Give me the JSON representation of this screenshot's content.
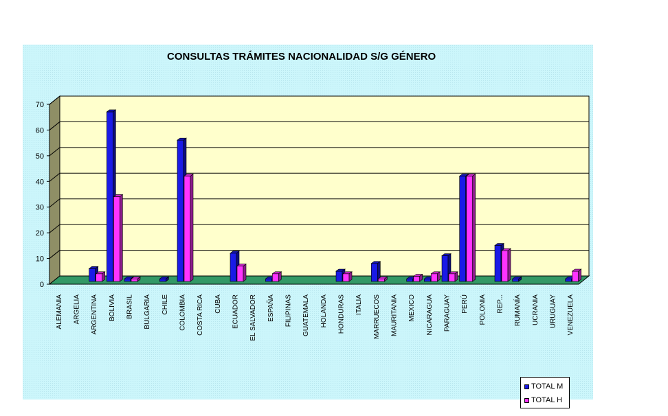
{
  "chart_data": {
    "type": "bar",
    "title": "CONSULTAS TRÁMITES NACIONALIDAD S/G GÉNERO",
    "xlabel": "",
    "ylabel": "",
    "ylim": [
      0,
      70
    ],
    "yticks": [
      "0",
      "10",
      "20",
      "30",
      "40",
      "50",
      "60",
      "70"
    ],
    "grid": true,
    "legend_position": "bottom-right",
    "categories": [
      "ALEMANIA",
      "ARGELIA",
      "ARGENTINA",
      "BOLIVIA",
      "BRASIL",
      "BULGARIA",
      "CHILE",
      "COLOMBIA",
      "COSTA RICA",
      "CUBA",
      "ECUADOR",
      "EL SALVADOR",
      "ESPAÑA",
      "FILIPINAS",
      "GUATEMALA",
      "HOLANDA",
      "HONDURAS",
      "ITALIA",
      "MARRUECOS",
      "MAURITANIA",
      "MEXICO",
      "NICARAGUA",
      "PARAGUAY",
      "PERÚ",
      "POLONIA",
      "REP...",
      "RUMANÍA",
      "UCRANIA",
      "URUGUAY",
      "VENEZUELA"
    ],
    "series": [
      {
        "name": "TOTAL M",
        "color": "#1a1ae6",
        "values": [
          0,
          0,
          5,
          66,
          1,
          0,
          1,
          55,
          0,
          0,
          11,
          0,
          1,
          0,
          0,
          0,
          4,
          0,
          7,
          0,
          1,
          1,
          10,
          41,
          0,
          14,
          1,
          0,
          0,
          1
        ]
      },
      {
        "name": "TOTAL H",
        "color": "#ff33ff",
        "values": [
          0,
          0,
          3,
          33,
          1,
          0,
          0,
          41,
          0,
          0,
          6,
          0,
          3,
          0,
          0,
          0,
          3,
          0,
          1,
          0,
          2,
          3,
          3,
          41,
          0,
          12,
          0,
          0,
          0,
          4
        ]
      }
    ],
    "colors": {
      "background": "#ccf6fb",
      "plot_wall": "#ffffcc",
      "floor": "#339966"
    }
  }
}
